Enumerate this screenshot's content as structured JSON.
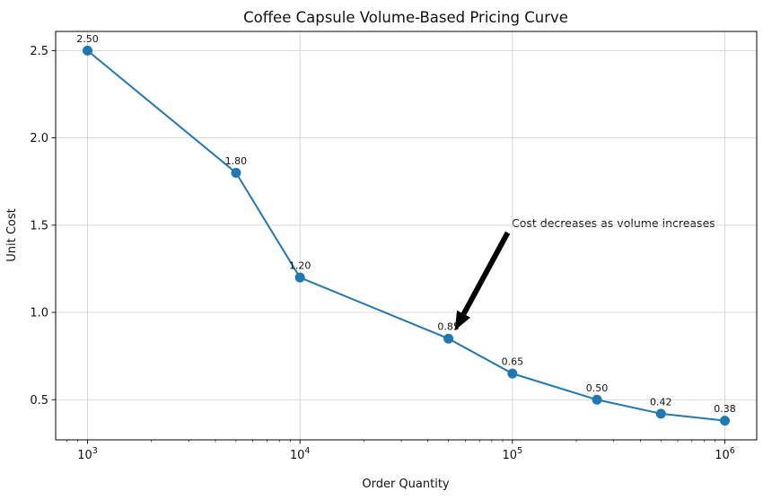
{
  "chart_data": {
    "type": "line",
    "title": "Coffee Capsule Volume-Based Pricing Curve",
    "xlabel": "Order Quantity",
    "ylabel": "Unit Cost",
    "x_scale": "log",
    "x": [
      1000,
      5000,
      10000,
      50000,
      100000,
      250000,
      500000,
      1000000
    ],
    "y": [
      2.5,
      1.8,
      1.2,
      0.85,
      0.65,
      0.5,
      0.42,
      0.38
    ],
    "point_labels": [
      "2.50",
      "1.80",
      "1.20",
      "0.85",
      "0.65",
      "0.50",
      "0.42",
      "0.38"
    ],
    "x_ticks": [
      {
        "value": 1000,
        "base": "10",
        "exp": "3"
      },
      {
        "value": 10000,
        "base": "10",
        "exp": "4"
      },
      {
        "value": 100000,
        "base": "10",
        "exp": "5"
      },
      {
        "value": 1000000,
        "base": "10",
        "exp": "6"
      }
    ],
    "y_ticks": [
      0.5,
      1.0,
      1.5,
      2.0,
      2.5
    ],
    "x_log_range": [
      2.85,
      6.15
    ],
    "ylim": [
      0.27,
      2.61
    ],
    "grid": true,
    "line_color": "#1f77b4",
    "marker_color": "#1f77b4",
    "grid_color": "#d4d4d4",
    "spine_color": "#000000",
    "annotation": {
      "text": "Cost decreases as volume increases",
      "target_x": 50000,
      "target_y": 0.85,
      "arrow_color": "#000000"
    }
  }
}
